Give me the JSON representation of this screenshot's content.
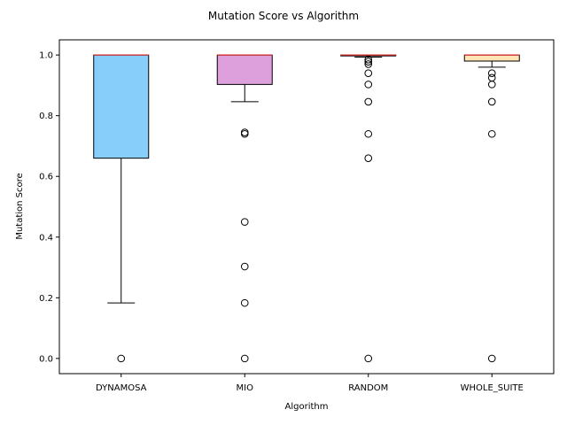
{
  "chart_data": {
    "type": "box",
    "title": "Mutation Score vs Algorithm",
    "xlabel": "Algorithm",
    "ylabel": "Mutation Score",
    "ylim": [
      -0.05,
      1.05
    ],
    "yticks": [
      0.0,
      0.2,
      0.4,
      0.6,
      0.8,
      1.0
    ],
    "ytick_labels": [
      "0.0",
      "0.2",
      "0.4",
      "0.6",
      "0.8",
      "1.0"
    ],
    "grid": false,
    "median_color": "#d62728",
    "categories": [
      "DYNAMOSA",
      "MIO",
      "RANDOM",
      "WHOLE_SUITE"
    ],
    "series": [
      {
        "category": "DYNAMOSA",
        "color": "#87cefa",
        "whisker_low": 0.183,
        "q1": 0.66,
        "median": 1.0,
        "q3": 1.0,
        "whisker_high": 1.0,
        "outliers": [
          0.0
        ]
      },
      {
        "category": "MIO",
        "color": "#dda0dd",
        "whisker_low": 0.846,
        "q1": 0.903,
        "median": 1.0,
        "q3": 1.0,
        "whisker_high": 1.0,
        "outliers": [
          0.745,
          0.74,
          0.45,
          0.303,
          0.183,
          0.0
        ]
      },
      {
        "category": "RANDOM",
        "color": "#f4a582",
        "whisker_low": 0.993,
        "q1": 0.997,
        "median": 1.0,
        "q3": 1.0,
        "whisker_high": 1.0,
        "outliers": [
          0.985,
          0.978,
          0.97,
          0.94,
          0.903,
          0.846,
          0.74,
          0.66,
          0.0
        ]
      },
      {
        "category": "WHOLE_SUITE",
        "color": "#ffe4b5",
        "whisker_low": 0.96,
        "q1": 0.98,
        "median": 1.0,
        "q3": 1.0,
        "whisker_high": 1.0,
        "outliers": [
          0.94,
          0.925,
          0.903,
          0.846,
          0.74,
          0.0
        ]
      }
    ]
  }
}
